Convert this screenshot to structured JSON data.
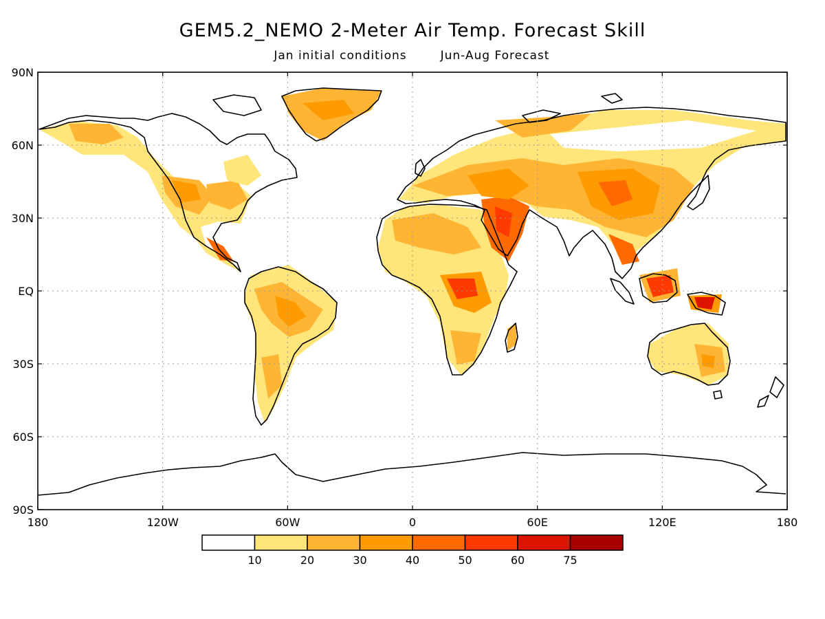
{
  "title": "GEM5.2_NEMO 2-Meter Air Temp. Forecast Skill",
  "subtitle_left": "Jan initial conditions",
  "subtitle_right": "Jun-Aug Forecast",
  "map": {
    "projection": "equirectangular",
    "lon_range": [
      -180,
      180
    ],
    "lat_range": [
      -90,
      90
    ],
    "grid_lines": true,
    "lat_ticks": [
      {
        "value": 90,
        "label": "90N"
      },
      {
        "value": 60,
        "label": "60N"
      },
      {
        "value": 30,
        "label": "30N"
      },
      {
        "value": 0,
        "label": "EQ"
      },
      {
        "value": -30,
        "label": "30S"
      },
      {
        "value": -60,
        "label": "60S"
      },
      {
        "value": -90,
        "label": "90S"
      }
    ],
    "lon_ticks": [
      {
        "value": -180,
        "label": "180"
      },
      {
        "value": -120,
        "label": "120W"
      },
      {
        "value": -60,
        "label": "60W"
      },
      {
        "value": 0,
        "label": "0"
      },
      {
        "value": 60,
        "label": "60E"
      },
      {
        "value": 120,
        "label": "120E"
      },
      {
        "value": 180,
        "label": "180"
      }
    ]
  },
  "colorbar": {
    "boundaries": [
      "10",
      "20",
      "30",
      "40",
      "50",
      "60",
      "75"
    ],
    "colors": [
      "#ffffff",
      "#ffe57a",
      "#ffb533",
      "#ff9a00",
      "#ff6a00",
      "#ff3a00",
      "#dd1500",
      "#a80000"
    ]
  }
}
